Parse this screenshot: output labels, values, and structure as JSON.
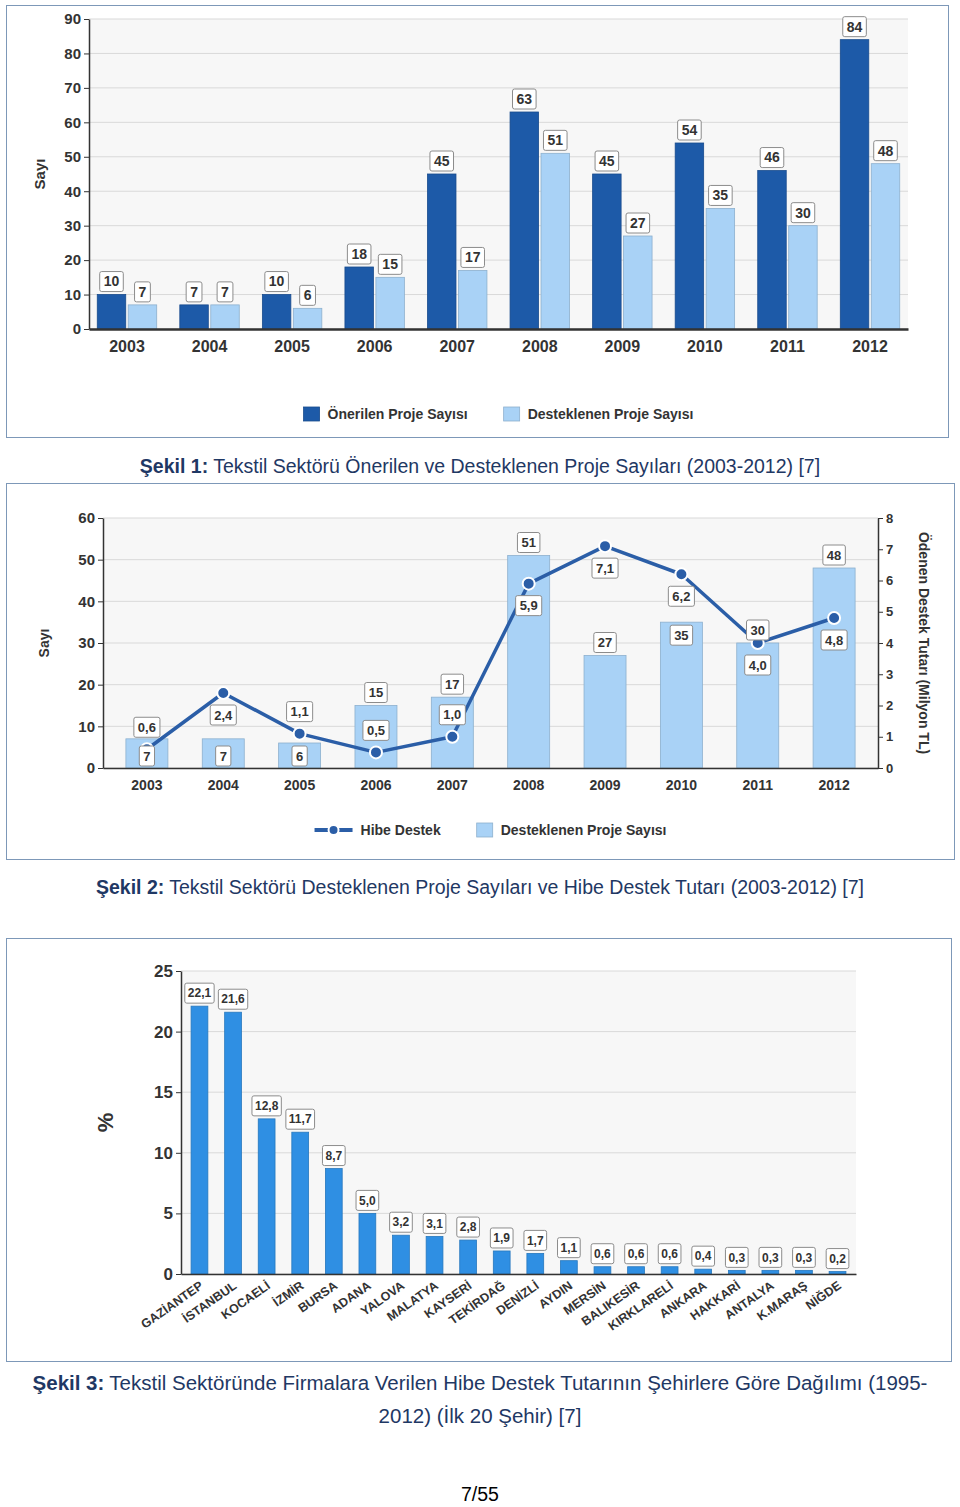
{
  "chart_data": [
    {
      "type": "bar",
      "categories": [
        "2003",
        "2004",
        "2005",
        "2006",
        "2007",
        "2008",
        "2009",
        "2010",
        "2011",
        "2012"
      ],
      "y_label": "Sayı",
      "ylim": [
        0,
        90
      ],
      "yticks": [
        0,
        10,
        20,
        30,
        40,
        50,
        60,
        70,
        80,
        90
      ],
      "grid": true,
      "data_labels": true,
      "legend": "bottom",
      "series": [
        {
          "name": "Önerilen Proje Sayısı",
          "color": "#1d5aa8",
          "values": [
            10,
            7,
            10,
            18,
            45,
            63,
            45,
            54,
            46,
            84
          ]
        },
        {
          "name": "Desteklenen Proje Sayısı",
          "color": "#a9d2f6",
          "values": [
            7,
            7,
            6,
            15,
            17,
            51,
            27,
            35,
            30,
            48
          ]
        }
      ]
    },
    {
      "type": "bar",
      "categories": [
        "2003",
        "2004",
        "2005",
        "2006",
        "2007",
        "2008",
        "2009",
        "2010",
        "2011",
        "2012"
      ],
      "y_label": "Sayı",
      "y2_label": "Ödenen Destek Tutarı (Milyon TL)",
      "ylim": [
        0,
        60
      ],
      "yticks": [
        0,
        10,
        20,
        30,
        40,
        50,
        60
      ],
      "y2lim": [
        0,
        8
      ],
      "y2ticks": [
        0,
        1,
        2,
        3,
        4,
        5,
        6,
        7,
        8
      ],
      "grid": true,
      "data_labels": true,
      "legend": "bottom",
      "series": [
        {
          "name": "Hibe Destek",
          "type": "line",
          "axis": "y2",
          "color": "#2b5ea7",
          "marker": "circle",
          "values": [
            0.6,
            2.4,
            1.1,
            0.5,
            1.0,
            5.9,
            7.1,
            6.2,
            4.0,
            4.8
          ],
          "value_labels": [
            "0,6",
            "2,4",
            "1,1",
            "0,5",
            "1,0",
            "5,9",
            "7,1",
            "6,2",
            "4,0",
            "4,8"
          ]
        },
        {
          "name": "Desteklenen Proje Sayısı",
          "type": "bar",
          "color": "#a9d2f6",
          "values": [
            7,
            7,
            6,
            15,
            17,
            51,
            27,
            35,
            30,
            48
          ]
        }
      ]
    },
    {
      "type": "bar",
      "categories": [
        "GAZİANTEP",
        "İSTANBUL",
        "KOCAELİ",
        "İZMİR",
        "BURSA",
        "ADANA",
        "YALOVA",
        "MALATYA",
        "KAYSERİ",
        "TEKİRDAĞ",
        "DENİZLİ",
        "AYDIN",
        "MERSİN",
        "BALIKESİR",
        "KIRKLARELİ",
        "ANKARA",
        "HAKKARİ",
        "ANTALYA",
        "K.MARAŞ",
        "NİĞDE"
      ],
      "y_label": "%",
      "ylim": [
        0,
        25
      ],
      "yticks": [
        0,
        5,
        10,
        15,
        20,
        25
      ],
      "grid": true,
      "data_labels": true,
      "color": "#2f8fe3",
      "values": [
        22.1,
        21.6,
        12.8,
        11.7,
        8.7,
        5.0,
        3.2,
        3.1,
        2.8,
        1.9,
        1.7,
        1.1,
        0.6,
        0.6,
        0.6,
        0.4,
        0.3,
        0.3,
        0.3,
        0.2
      ],
      "value_labels": [
        "22,1",
        "21,6",
        "12,8",
        "11,7",
        "8,7",
        "5,0",
        "3,2",
        "3,1",
        "2,8",
        "1,9",
        "1,7",
        "1,1",
        "0,6",
        "0,6",
        "0,6",
        "0,4",
        "0,3",
        "0,3",
        "0,3",
        "0,2"
      ]
    }
  ],
  "captions": [
    {
      "label": "Şekil 1:",
      "text": "Tekstil Sektörü Önerilen ve Desteklenen Proje Sayıları (2003-2012) [7]"
    },
    {
      "label": "Şekil 2:",
      "text": "Tekstil Sektörü Desteklenen Proje Sayıları ve Hibe Destek Tutarı (2003-2012) [7]"
    },
    {
      "label": "Şekil 3:",
      "text": "Tekstil Sektöründe Firmalara Verilen Hibe Destek Tutarının Şehirlere Göre Dağılımı (1995-2012) (İlk 20 Şehir) [7]"
    }
  ],
  "page_number": "7/55"
}
